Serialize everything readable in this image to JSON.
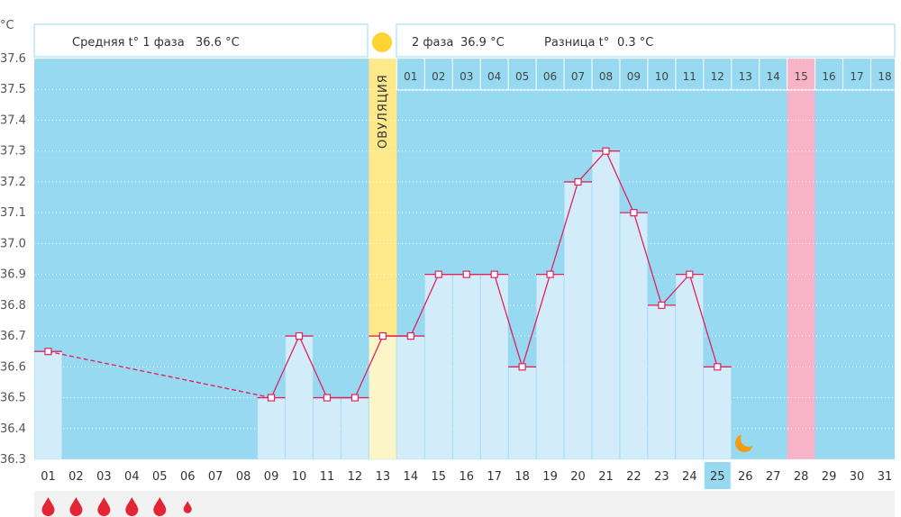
{
  "chart_data": {
    "type": "bar",
    "unit_label": "°C",
    "ylim": [
      36.3,
      37.6
    ],
    "yticks": [
      "36.3",
      "36.4",
      "36.5",
      "36.6",
      "36.7",
      "36.8",
      "36.9",
      "37.0",
      "37.1",
      "37.2",
      "37.3",
      "37.4",
      "37.5",
      "37.6"
    ],
    "categories": [
      "01",
      "02",
      "03",
      "04",
      "05",
      "06",
      "07",
      "08",
      "09",
      "10",
      "11",
      "12",
      "13",
      "14",
      "15",
      "16",
      "17",
      "18",
      "19",
      "20",
      "21",
      "22",
      "23",
      "24",
      "25",
      "26",
      "27",
      "28",
      "29",
      "30",
      "31"
    ],
    "values": [
      36.65,
      null,
      null,
      null,
      null,
      null,
      null,
      null,
      36.5,
      36.7,
      36.5,
      36.5,
      36.7,
      36.7,
      36.9,
      36.9,
      36.9,
      36.6,
      36.9,
      37.2,
      37.3,
      37.1,
      36.8,
      36.9,
      36.6,
      null,
      null,
      null,
      null,
      null,
      null
    ],
    "highlighted_day": "25",
    "ovulation_label": "ОВУЛЯЦИЯ",
    "phase2_days": [
      "01",
      "02",
      "03",
      "04",
      "05",
      "06",
      "07",
      "08",
      "09",
      "10",
      "11",
      "12",
      "13",
      "14",
      "15",
      "16",
      "17",
      "18"
    ],
    "highlighted_phase2_day": "15",
    "period_marks": [
      "big",
      "big",
      "big",
      "big",
      "big",
      "small"
    ],
    "header": {
      "phase1_label": "Средняя t° 1 фаза",
      "phase1_value": "36.6 °C",
      "phase2_label": "2 фаза",
      "phase2_value": "36.9 °C",
      "diff_label": "Разница t°",
      "diff_value": "0.3 °C"
    },
    "colors": {
      "background": "#97d9f1",
      "bar": "#d3ecfa",
      "line": "#e0235e",
      "ovulation": "#fde98a",
      "ovulation_light": "#fcf5c8",
      "highlight_col": "#f7b4c8",
      "sun": "#fdd431",
      "moon": "#f39c12",
      "drop": "#e32636"
    }
  }
}
